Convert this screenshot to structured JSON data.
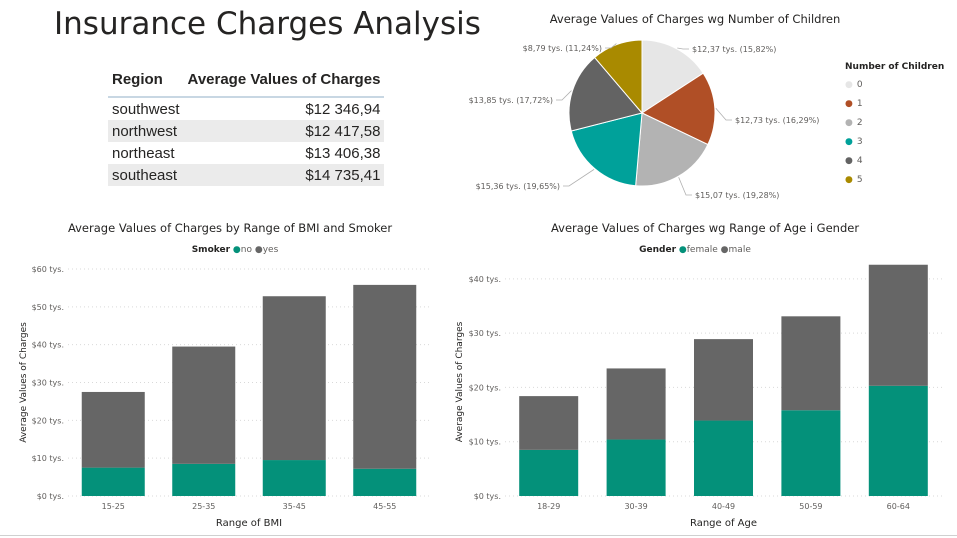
{
  "page": {
    "title": "Insurance Charges Analysis"
  },
  "region_table": {
    "headers": [
      "Region",
      "Average Values of Charges"
    ],
    "rows": [
      [
        "southwest",
        "$12 346,94"
      ],
      [
        "northwest",
        "$12 417,58"
      ],
      [
        "northeast",
        "$13 406,38"
      ],
      [
        "southeast",
        "$14 735,41"
      ]
    ]
  },
  "colors": {
    "pie": [
      "#e6e6e6",
      "#b04f26",
      "#b3b3b3",
      "#00a19a",
      "#636363",
      "#a98a00"
    ],
    "no": "#04917a",
    "yes": "#666666",
    "female": "#04917a",
    "male": "#666666"
  },
  "chart_data": [
    {
      "type": "pie",
      "title": "Average Values of Charges wg Number of Children",
      "legend_title": "Number of Children",
      "legend_position": "right",
      "categories": [
        "0",
        "1",
        "2",
        "3",
        "4",
        "5"
      ],
      "values": [
        12.37,
        12.73,
        15.07,
        15.36,
        13.85,
        8.79
      ],
      "labels": [
        "$12,37 tys. (15,82%)",
        "$12,73 tys. (16,29%)",
        "$15,07 tys. (19,28%)",
        "$15,36 tys. (19,65%)",
        "$13,85 tys. (17,72%)",
        "$8,79 tys. (11,24%)"
      ]
    },
    {
      "type": "bar",
      "stacked": true,
      "title": "Average Values of Charges by Range of BMI and Smoker",
      "legend_title": "Smoker",
      "legend_position": "top",
      "xlabel": "Range of BMI",
      "ylabel": "Average Values of Charges",
      "categories": [
        "15-25",
        "25-35",
        "35-45",
        "45-55"
      ],
      "series": [
        {
          "name": "no",
          "values": [
            7.5,
            8.5,
            9.5,
            7.2
          ]
        },
        {
          "name": "yes",
          "values": [
            20.0,
            31.0,
            43.3,
            48.6
          ]
        }
      ],
      "ylim": [
        0,
        60
      ],
      "yticks": [
        0,
        10,
        20,
        30,
        40,
        50,
        60
      ],
      "ytick_labels": [
        "$0 tys.",
        "$10 tys.",
        "$20 tys.",
        "$30 tys.",
        "$40 tys.",
        "$50 tys.",
        "$60 tys."
      ],
      "grid": true
    },
    {
      "type": "bar",
      "stacked": true,
      "title": "Average Values of Charges wg Range of Age i Gender",
      "legend_title": "Gender",
      "legend_position": "top",
      "xlabel": "Range of Age",
      "ylabel": "Average Values of Charges",
      "categories": [
        "18-29",
        "30-39",
        "40-49",
        "50-59",
        "60-64"
      ],
      "series": [
        {
          "name": "female",
          "values": [
            8.5,
            10.4,
            13.9,
            15.8,
            20.3
          ]
        },
        {
          "name": "male",
          "values": [
            9.9,
            13.1,
            15.0,
            17.3,
            22.3
          ]
        }
      ],
      "ylim": [
        0,
        42
      ],
      "yticks": [
        0,
        10,
        20,
        30,
        40
      ],
      "ytick_labels": [
        "$0 tys.",
        "$10 tys.",
        "$20 tys.",
        "$30 tys.",
        "$40 tys."
      ],
      "grid": true
    }
  ]
}
